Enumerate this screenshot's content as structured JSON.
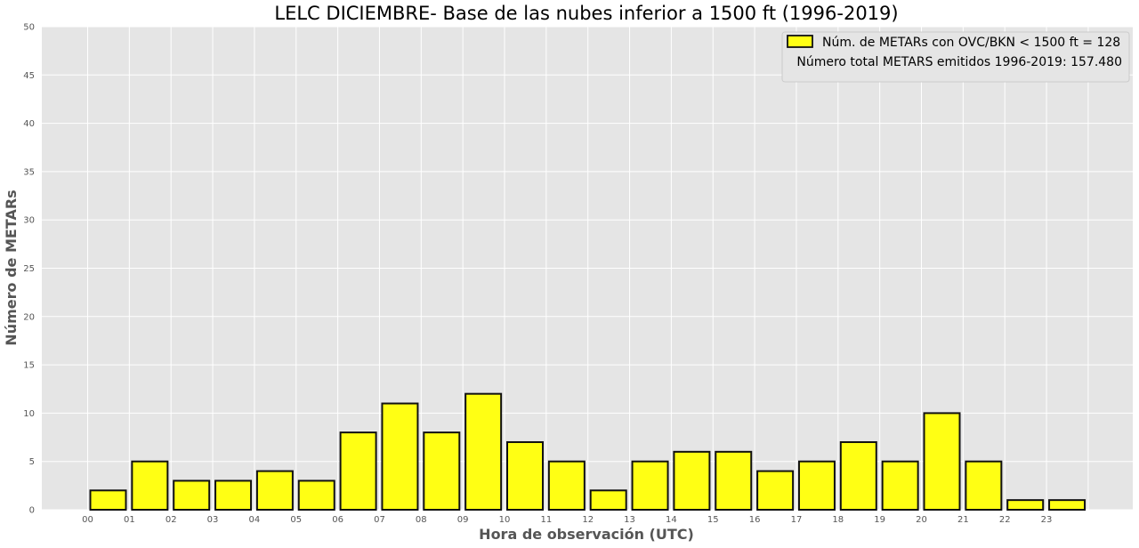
{
  "chart_data": {
    "type": "bar",
    "title": "LELC DICIEMBRE- Base de las nubes inferior a 1500 ft (1996-2019)",
    "xlabel": "Hora de observación (UTC)",
    "ylabel": "Número de METARs",
    "categories": [
      "00",
      "01",
      "02",
      "03",
      "04",
      "05",
      "06",
      "07",
      "08",
      "09",
      "10",
      "11",
      "12",
      "13",
      "14",
      "15",
      "16",
      "17",
      "18",
      "19",
      "20",
      "21",
      "22",
      "23"
    ],
    "series": [
      {
        "name": "Núm. de METARs con OVC/BKN < 1500 ft = 128",
        "values": [
          2,
          5,
          3,
          3,
          4,
          3,
          8,
          11,
          8,
          12,
          7,
          5,
          2,
          5,
          6,
          6,
          4,
          5,
          7,
          5,
          10,
          5,
          1,
          1
        ]
      }
    ],
    "ylim": [
      0,
      50
    ],
    "yticks": [
      "0",
      "5",
      "10",
      "15",
      "20",
      "25",
      "30",
      "35",
      "40",
      "45",
      "50"
    ],
    "grid": true,
    "legend_position": "top-right",
    "annotation": "Número total METARS emitidos 1996-2019: 157.480",
    "colors": {
      "bar_fill": "#ffff14",
      "bar_edge": "#111111",
      "plot_background": "#e5e5e5",
      "grid": "#ffffff"
    }
  }
}
